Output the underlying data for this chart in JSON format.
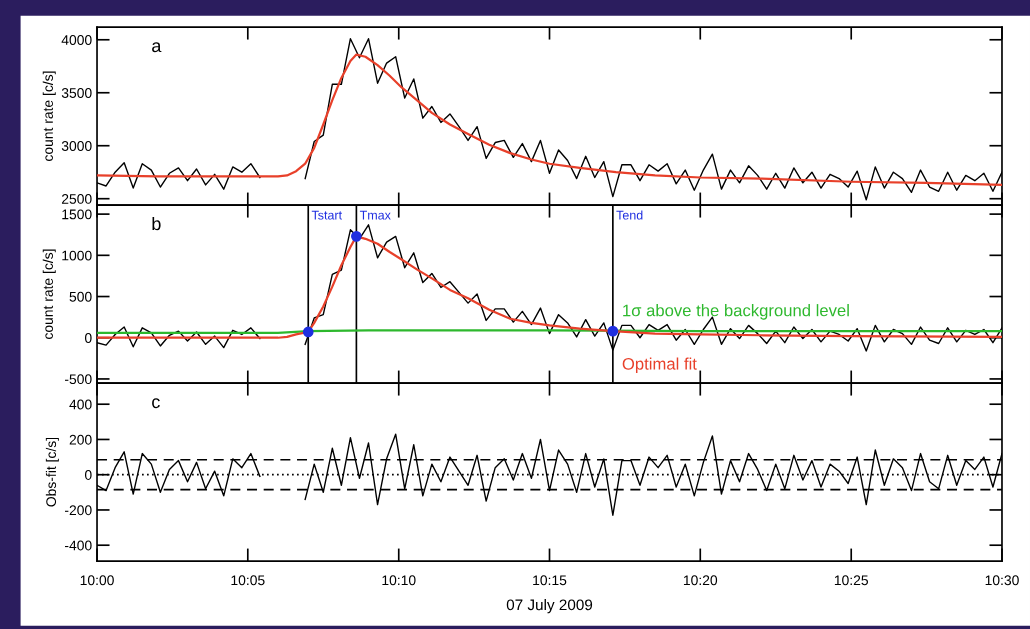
{
  "chart_data": [
    {
      "type": "line",
      "annotations": [
        "a"
      ],
      "ylabel": "count rate [c/s]",
      "tick_labels": "y",
      "xlim": [
        10.0,
        10.5
      ],
      "xticks": [
        {
          "value": 10.0,
          "label": null
        },
        {
          "value": 10.0833,
          "label": null
        },
        {
          "value": 10.1667,
          "label": null
        },
        {
          "value": 10.25,
          "label": null
        },
        {
          "value": 10.3333,
          "label": null
        },
        {
          "value": 10.4167,
          "label": null
        },
        {
          "value": 10.5,
          "label": null
        }
      ],
      "ylim": [
        2440,
        4120
      ],
      "yticks": [
        2500,
        3000,
        3500,
        4000
      ],
      "x": [
        10.0,
        10.005,
        10.01,
        10.015,
        10.02,
        10.025,
        10.03,
        10.035,
        10.04,
        10.045,
        10.05,
        10.055,
        10.06,
        10.065,
        10.07,
        10.075,
        10.08,
        10.085,
        10.09,
        10.1,
        10.115,
        10.12,
        10.125,
        10.13,
        10.135,
        10.14,
        10.145,
        10.15,
        10.155,
        10.16,
        10.165,
        10.17,
        10.175,
        10.18,
        10.185,
        10.19,
        10.195,
        10.2,
        10.205,
        10.21,
        10.215,
        10.22,
        10.225,
        10.23,
        10.235,
        10.24,
        10.245,
        10.25,
        10.255,
        10.26,
        10.265,
        10.27,
        10.275,
        10.28,
        10.285,
        10.29,
        10.295,
        10.3,
        10.305,
        10.31,
        10.315,
        10.32,
        10.325,
        10.33,
        10.335,
        10.34,
        10.345,
        10.35,
        10.355,
        10.36,
        10.365,
        10.37,
        10.375,
        10.38,
        10.385,
        10.39,
        10.395,
        10.4,
        10.405,
        10.41,
        10.415,
        10.42,
        10.425,
        10.43,
        10.435,
        10.44,
        10.445,
        10.45,
        10.455,
        10.46,
        10.465,
        10.47,
        10.475,
        10.48,
        10.485,
        10.49,
        10.495,
        10.5
      ],
      "series": [
        {
          "color": "#000000",
          "values": [
            2650,
            2620,
            2750,
            2840,
            2600,
            2830,
            2770,
            2610,
            2740,
            2790,
            2670,
            2780,
            2630,
            2730,
            2590,
            2800,
            2750,
            2830,
            2700,
            null,
            2690,
            3040,
            3100,
            3580,
            3580,
            4010,
            3830,
            4010,
            3590,
            3780,
            3840,
            3450,
            3630,
            3260,
            3370,
            3220,
            3300,
            3180,
            3050,
            3180,
            2880,
            3030,
            3050,
            2890,
            3020,
            2850,
            3050,
            2740,
            2960,
            2860,
            2690,
            2900,
            2700,
            2850,
            2520,
            2820,
            2820,
            2670,
            2820,
            2760,
            2830,
            2640,
            2770,
            2580,
            2770,
            2920,
            2590,
            2770,
            2650,
            2810,
            2720,
            2590,
            2740,
            2600,
            2790,
            2650,
            2750,
            2600,
            2730,
            2690,
            2610,
            2760,
            2490,
            2800,
            2600,
            2750,
            2690,
            2560,
            2770,
            2610,
            2570,
            2750,
            2580,
            2720,
            2670,
            2740,
            2570,
            2750
          ]
        },
        {
          "color": "#e8402a",
          "x": [
            10.0,
            10.0333,
            10.0667,
            10.0917,
            10.1,
            10.105,
            10.11,
            10.115,
            10.12,
            10.125,
            10.13,
            10.135,
            10.14,
            10.1433,
            10.1483,
            10.155,
            10.1617,
            10.1683,
            10.1767,
            10.185,
            10.195,
            10.205,
            10.2167,
            10.2283,
            10.24,
            10.25,
            10.2667,
            10.2867,
            10.3083,
            10.3333,
            10.3667,
            10.4167,
            10.4583,
            10.5
          ],
          "values": [
            2720,
            2710,
            2710,
            2710,
            2710,
            2720,
            2760,
            2830,
            2980,
            3200,
            3430,
            3640,
            3800,
            3860,
            3840,
            3760,
            3660,
            3550,
            3430,
            3310,
            3200,
            3110,
            3010,
            2930,
            2870,
            2830,
            2790,
            2750,
            2720,
            2700,
            2690,
            2660,
            2650,
            2630
          ]
        }
      ]
    },
    {
      "type": "line",
      "annotations": [
        "b"
      ],
      "ylabel": "count rate [c/s]",
      "tick_labels": "y",
      "xlim": [
        10.0,
        10.5
      ],
      "xticks": [
        {
          "value": 10.0,
          "label": null
        },
        {
          "value": 10.0833,
          "label": null
        },
        {
          "value": 10.1667,
          "label": null
        },
        {
          "value": 10.25,
          "label": null
        },
        {
          "value": 10.3333,
          "label": null
        },
        {
          "value": 10.4167,
          "label": null
        },
        {
          "value": 10.5,
          "label": null
        }
      ],
      "ylim": [
        -550,
        1610
      ],
      "yticks": [
        -500,
        0,
        500,
        1000,
        1500
      ],
      "x": [
        10.0,
        10.005,
        10.01,
        10.015,
        10.02,
        10.025,
        10.03,
        10.035,
        10.04,
        10.045,
        10.05,
        10.055,
        10.06,
        10.065,
        10.07,
        10.075,
        10.08,
        10.085,
        10.09,
        10.1,
        10.115,
        10.12,
        10.125,
        10.13,
        10.135,
        10.14,
        10.145,
        10.15,
        10.155,
        10.16,
        10.165,
        10.17,
        10.175,
        10.18,
        10.185,
        10.19,
        10.195,
        10.2,
        10.205,
        10.21,
        10.215,
        10.22,
        10.225,
        10.23,
        10.235,
        10.24,
        10.245,
        10.25,
        10.255,
        10.26,
        10.265,
        10.27,
        10.275,
        10.28,
        10.285,
        10.29,
        10.295,
        10.3,
        10.305,
        10.31,
        10.315,
        10.32,
        10.325,
        10.33,
        10.335,
        10.34,
        10.345,
        10.35,
        10.355,
        10.36,
        10.365,
        10.37,
        10.375,
        10.38,
        10.385,
        10.39,
        10.395,
        10.4,
        10.405,
        10.41,
        10.415,
        10.42,
        10.425,
        10.43,
        10.435,
        10.44,
        10.445,
        10.45,
        10.455,
        10.46,
        10.465,
        10.47,
        10.475,
        10.48,
        10.485,
        10.49,
        10.495,
        10.5
      ],
      "ref_lines": [
        {
          "axis": "x",
          "value": 10.1167,
          "label": "Tstart",
          "color": "#000000"
        },
        {
          "axis": "x",
          "value": 10.1433,
          "label": "Tmax",
          "color": "#000000"
        },
        {
          "axis": "x",
          "value": 10.285,
          "label": "Tend",
          "color": "#000000"
        }
      ],
      "series": [
        {
          "color": "#000000",
          "values": [
            -60,
            -90,
            40,
            130,
            -110,
            120,
            60,
            -100,
            30,
            80,
            -40,
            70,
            -80,
            20,
            -120,
            90,
            40,
            120,
            -10,
            null,
            -80,
            240,
            280,
            770,
            820,
            1310,
            1200,
            1370,
            970,
            1160,
            1230,
            850,
            1030,
            670,
            780,
            610,
            680,
            550,
            420,
            530,
            210,
            350,
            350,
            190,
            320,
            160,
            360,
            50,
            280,
            180,
            10,
            220,
            20,
            180,
            -150,
            150,
            150,
            0,
            160,
            90,
            160,
            -30,
            100,
            -80,
            100,
            250,
            -80,
            110,
            -10,
            150,
            50,
            -70,
            80,
            -60,
            130,
            -10,
            100,
            -50,
            80,
            40,
            -40,
            110,
            -160,
            150,
            -50,
            100,
            50,
            -80,
            130,
            -30,
            -70,
            120,
            -50,
            90,
            40,
            100,
            -60,
            120
          ]
        },
        {
          "name": "1σ above the background level",
          "color": "#2db82d",
          "x": [
            10.0,
            10.1,
            10.1167,
            10.15,
            10.25,
            10.3333,
            10.5
          ],
          "values": [
            60,
            60,
            80,
            90,
            90,
            80,
            80
          ]
        },
        {
          "name": "Optimal fit",
          "color": "#e8402a",
          "x": [
            10.0,
            10.0917,
            10.1,
            10.105,
            10.11,
            10.1167,
            10.12,
            10.125,
            10.13,
            10.135,
            10.14,
            10.1433,
            10.1483,
            10.155,
            10.1617,
            10.1683,
            10.1767,
            10.185,
            10.195,
            10.205,
            10.2167,
            10.2283,
            10.24,
            10.25,
            10.2667,
            10.285,
            10.3083,
            10.3333,
            10.3667,
            10.4167,
            10.5
          ],
          "values": [
            0,
            0,
            0,
            10,
            40,
            70,
            180,
            380,
            620,
            880,
            1100,
            1230,
            1200,
            1140,
            1040,
            950,
            830,
            720,
            580,
            480,
            340,
            230,
            180,
            150,
            110,
            80,
            50,
            40,
            30,
            20,
            10
          ]
        },
        {
          "type": "scatter",
          "marker": "circle",
          "color": "#1f2fe0",
          "x": [
            10.1167,
            10.1433,
            10.285
          ],
          "values": [
            70,
            1230,
            80
          ]
        }
      ]
    },
    {
      "type": "line",
      "annotations": [
        "c"
      ],
      "ylabel": "Obs-fit [c/s]",
      "xlabel": "07 July 2009",
      "xlim": [
        10.0,
        10.5
      ],
      "xticks": [
        {
          "value": 10.0,
          "label": "10:00"
        },
        {
          "value": 10.0833,
          "label": "10:05"
        },
        {
          "value": 10.1667,
          "label": "10:10"
        },
        {
          "value": 10.25,
          "label": "10:15"
        },
        {
          "value": 10.3333,
          "label": "10:20"
        },
        {
          "value": 10.4167,
          "label": "10:25"
        },
        {
          "value": 10.5,
          "label": "10:30"
        }
      ],
      "ylim": [
        -490,
        520
      ],
      "yticks": [
        -400,
        -200,
        0,
        200,
        400
      ],
      "x": [
        10.0,
        10.005,
        10.01,
        10.015,
        10.02,
        10.025,
        10.03,
        10.035,
        10.04,
        10.045,
        10.05,
        10.055,
        10.06,
        10.065,
        10.07,
        10.075,
        10.08,
        10.085,
        10.09,
        10.1,
        10.115,
        10.12,
        10.125,
        10.13,
        10.135,
        10.14,
        10.145,
        10.15,
        10.155,
        10.16,
        10.165,
        10.17,
        10.175,
        10.18,
        10.185,
        10.19,
        10.195,
        10.2,
        10.205,
        10.21,
        10.215,
        10.22,
        10.225,
        10.23,
        10.235,
        10.24,
        10.245,
        10.25,
        10.255,
        10.26,
        10.265,
        10.27,
        10.275,
        10.28,
        10.285,
        10.29,
        10.295,
        10.3,
        10.305,
        10.31,
        10.315,
        10.32,
        10.325,
        10.33,
        10.335,
        10.34,
        10.345,
        10.35,
        10.355,
        10.36,
        10.365,
        10.37,
        10.375,
        10.38,
        10.385,
        10.39,
        10.395,
        10.4,
        10.405,
        10.41,
        10.415,
        10.42,
        10.425,
        10.43,
        10.435,
        10.44,
        10.445,
        10.45,
        10.455,
        10.46,
        10.465,
        10.47,
        10.475,
        10.48,
        10.485,
        10.49,
        10.495,
        10.5
      ],
      "ref_lines": [
        {
          "axis": "y",
          "value": 85,
          "color": "#000000",
          "line_style": "dashed"
        },
        {
          "axis": "y",
          "value": 0,
          "color": "#000000",
          "line_style": "dotted"
        },
        {
          "axis": "y",
          "value": -85,
          "color": "#000000",
          "line_style": "dashed"
        }
      ],
      "series": [
        {
          "color": "#000000",
          "values": [
            -60,
            -90,
            40,
            130,
            -110,
            120,
            60,
            -100,
            30,
            80,
            -40,
            70,
            -80,
            20,
            -120,
            90,
            40,
            120,
            -10,
            null,
            -140,
            60,
            -100,
            150,
            -60,
            210,
            -20,
            180,
            -170,
            90,
            230,
            -80,
            170,
            -120,
            60,
            -40,
            100,
            20,
            -60,
            110,
            -150,
            40,
            90,
            -30,
            120,
            -20,
            200,
            -90,
            140,
            60,
            -100,
            120,
            -70,
            90,
            -230,
            80,
            80,
            -60,
            100,
            40,
            110,
            -70,
            60,
            -120,
            70,
            220,
            -110,
            80,
            -40,
            120,
            30,
            -90,
            60,
            -80,
            110,
            -30,
            80,
            -70,
            60,
            20,
            -50,
            100,
            -170,
            140,
            -60,
            90,
            40,
            -90,
            120,
            -40,
            -80,
            110,
            -60,
            80,
            30,
            100,
            -70,
            120
          ]
        }
      ]
    }
  ]
}
